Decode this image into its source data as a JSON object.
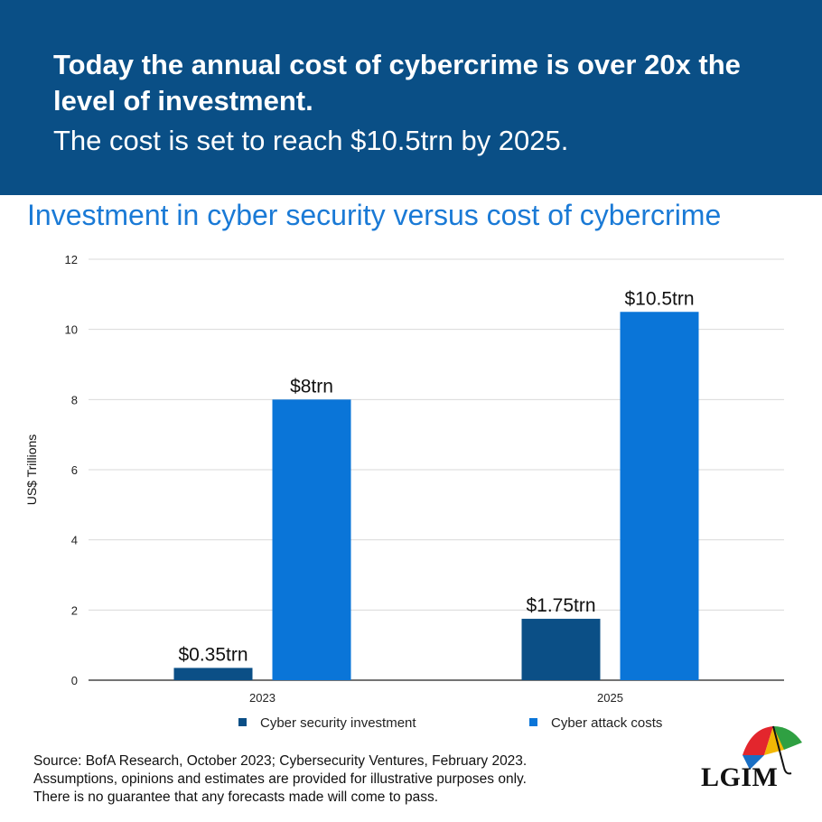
{
  "banner": {
    "headline": "Today the annual cost of cybercrime is over 20x the level of investment.",
    "subline": "The cost is set to reach $10.5trn by 2025."
  },
  "colors": {
    "banner": "#0a4f86",
    "investment": "#0b4f86",
    "attack": "#0a75d8",
    "title": "#1a7ad6"
  },
  "chart_data": {
    "type": "bar",
    "title": "Investment in cyber security versus cost of cybercrime",
    "ylabel": "US$ Trillions",
    "xlabel": "",
    "ylim": [
      0,
      12
    ],
    "yticks": [
      0,
      2,
      4,
      6,
      8,
      10,
      12
    ],
    "categories": [
      "2023",
      "2025"
    ],
    "grid": true,
    "legend_position": "bottom",
    "series": [
      {
        "name": "Cyber security investment",
        "values": [
          0.35,
          1.75
        ],
        "labels": [
          "$0.35trn",
          "$1.75trn"
        ],
        "color": "#0b4f86"
      },
      {
        "name": "Cyber attack costs",
        "values": [
          8,
          10.5
        ],
        "labels": [
          "$8trn",
          "$10.5trn"
        ],
        "color": "#0a75d8"
      }
    ]
  },
  "footnote": {
    "lines": [
      "Source: BofA Research, October 2023; Cybersecurity Ventures, February 2023.",
      "Assumptions, opinions and estimates are provided for illustrative purposes only.",
      "There is no guarantee that any forecasts made will come to pass."
    ]
  },
  "logo": {
    "text": "LGIM",
    "icon": "umbrella-icon"
  }
}
